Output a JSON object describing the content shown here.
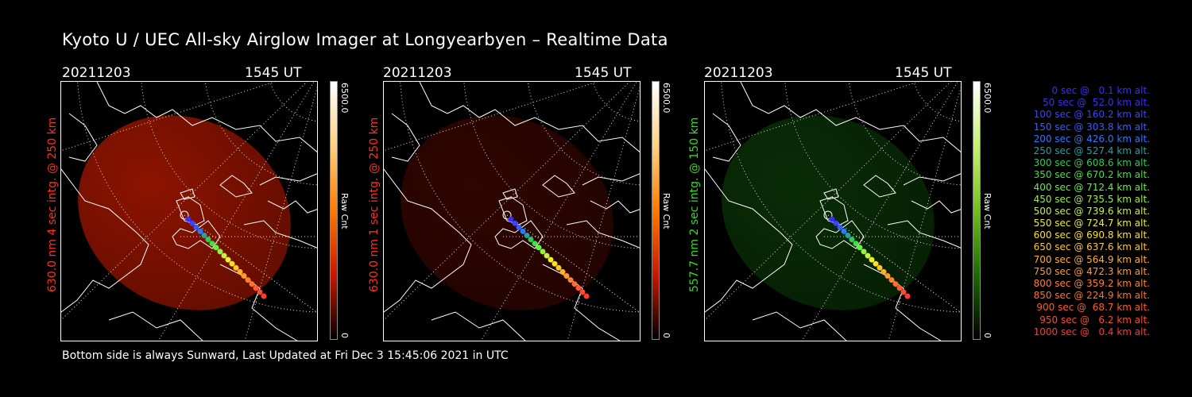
{
  "title": "Kyoto U / UEC All-sky Airglow Imager at Longyearbyen – Realtime Data",
  "footer": "Bottom side is always Sunward, Last Updated at Fri Dec  3 15:45:06 2021 in UTC",
  "panels": [
    {
      "date": "20211203",
      "time": "1545 UT",
      "side_label": "630.0 nm 4 sec intg. @ 250 km",
      "side_color": "#ff3020",
      "colorbar_max": "6500.0",
      "colorbar_min": "0",
      "colorbar_unit": "Raw Cnt",
      "glow_color": "#b01800",
      "glow_strength": 0.8
    },
    {
      "date": "20211203",
      "time": "1545 UT",
      "side_label": "630.0 nm 1 sec intg. @ 250 km",
      "side_color": "#ff3020",
      "colorbar_max": "6500.0",
      "colorbar_min": "0",
      "colorbar_unit": "Raw Cnt",
      "glow_color": "#6a0c00",
      "glow_strength": 0.45
    },
    {
      "date": "20211203",
      "time": "1545 UT",
      "side_label": "557.7 nm 2 sec intg. @ 150 km",
      "side_color": "#33dd22",
      "colorbar_max": "6500.0",
      "colorbar_min": "0",
      "colorbar_unit": "Raw Cnt",
      "glow_color": "#0e4a0a",
      "glow_strength": 0.6
    }
  ],
  "colors": {
    "red_bar": [
      "#ffffff",
      "#ffd080",
      "#ff7a00",
      "#c81800",
      "#000000"
    ],
    "green_bar": [
      "#ffffff",
      "#c8f070",
      "#70c020",
      "#1e6a00",
      "#000000"
    ]
  },
  "legend": [
    {
      "text": "0 sec @   0.1 km alt.",
      "color": "#3a2cff"
    },
    {
      "text": "50 sec @  52.0 km alt.",
      "color": "#3a2cff"
    },
    {
      "text": "100 sec @ 160.2 km alt.",
      "color": "#3a44ff"
    },
    {
      "text": "150 sec @ 303.8 km alt.",
      "color": "#3a5cff"
    },
    {
      "text": "200 sec @ 426.0 km alt.",
      "color": "#2a7aff"
    },
    {
      "text": "250 sec @ 527.4 km alt.",
      "color": "#2aa0a0"
    },
    {
      "text": "300 sec @ 608.6 km alt.",
      "color": "#33c85a"
    },
    {
      "text": "350 sec @ 670.2 km alt.",
      "color": "#44e044"
    },
    {
      "text": "400 sec @ 712.4 km alt.",
      "color": "#66ee44"
    },
    {
      "text": "450 sec @ 735.5 km alt.",
      "color": "#99f044"
    },
    {
      "text": "500 sec @ 739.6 km alt.",
      "color": "#c8f040"
    },
    {
      "text": "550 sec @ 724.7 km alt.",
      "color": "#eeee30"
    },
    {
      "text": "600 sec @ 690.8 km alt.",
      "color": "#ffe020"
    },
    {
      "text": "650 sec @ 637.6 km alt.",
      "color": "#ffc828"
    },
    {
      "text": "700 sec @ 564.9 km alt.",
      "color": "#ffb030"
    },
    {
      "text": "750 sec @ 472.3 km alt.",
      "color": "#ff9a30"
    },
    {
      "text": "800 sec @ 359.2 km alt.",
      "color": "#ff8030"
    },
    {
      "text": "850 sec @ 224.9 km alt.",
      "color": "#ff7030"
    },
    {
      "text": "900 sec @  68.7 km alt.",
      "color": "#ff5a30"
    },
    {
      "text": "950 sec @   6.2 km alt.",
      "color": "#ff4a30"
    },
    {
      "text": "1000 sec @   0.4 km alt.",
      "color": "#ff3a30"
    }
  ]
}
